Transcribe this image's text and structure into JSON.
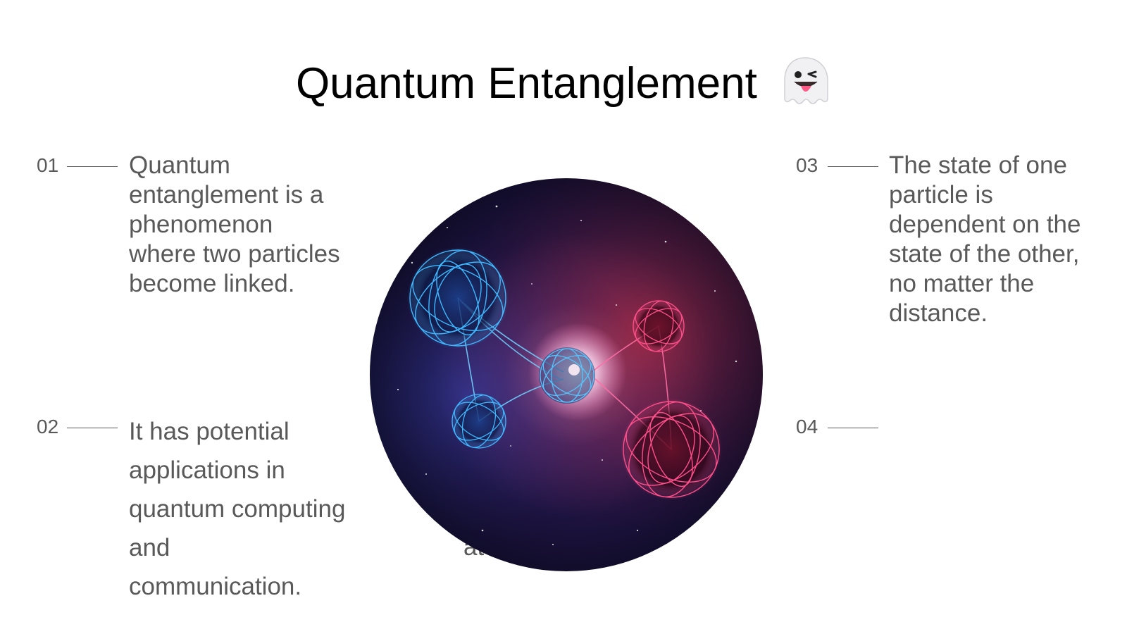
{
  "title": "Quantum Entanglement",
  "title_emoji": "ghost-emoji",
  "items": [
    {
      "number": "01",
      "text": "Quantum entanglement is a phenomenon where two particles become linked."
    },
    {
      "number": "02",
      "text": "It has potential applications in quantum computing and communication."
    },
    {
      "number": "03",
      "text": "The state of one particle is dependent on the state of the other, no matter the distance."
    },
    {
      "number": "04",
      "text": ""
    }
  ],
  "stray_text": "at",
  "colors": {
    "text": "#595959",
    "title": "#000000",
    "particle_blue": "#3fb8ff",
    "particle_pink": "#ff4f8a"
  }
}
